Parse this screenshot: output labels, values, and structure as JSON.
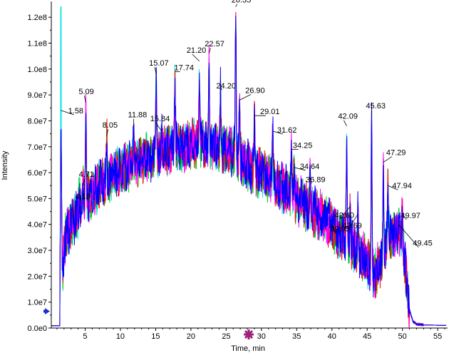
{
  "chart_data": {
    "type": "line",
    "xlabel": "Time, min",
    "ylabel": "Intensity",
    "xlim": [
      0.2,
      56.2
    ],
    "ylim": [
      0,
      125000000
    ],
    "x_ticks": [
      5,
      10,
      15,
      20,
      25,
      30,
      35,
      40,
      45,
      50,
      55
    ],
    "x_tick_labels": [
      "5",
      "10",
      "15",
      "20",
      "25",
      "30",
      "35",
      "40",
      "45",
      "50",
      "55"
    ],
    "y_ticks": [
      0,
      10000000,
      20000000,
      30000000,
      40000000,
      50000000,
      60000000,
      70000000,
      80000000,
      90000000,
      100000000,
      110000000,
      120000000
    ],
    "y_tick_labels": [
      "0.0e0",
      "1.0e7",
      "2.0e7",
      "3.0e7",
      "4.0e7",
      "5.0e7",
      "6.0e7",
      "7.0e7",
      "8.0e7",
      "9.0e7",
      "1.0e8",
      "1.1e8",
      "1.2e8"
    ],
    "grid": false,
    "legend": "none",
    "series_colors": [
      "#00e0e0",
      "#00cc00",
      "#ff0000",
      "#ff00ff",
      "#0000ff"
    ],
    "envelope": [
      [
        0.2,
        800000.0
      ],
      [
        1.2,
        800000.0
      ],
      [
        1.45,
        30000000.0
      ],
      [
        1.58,
        84000000.0
      ],
      [
        1.75,
        22000000.0
      ],
      [
        2.2,
        36000000.0
      ],
      [
        3,
        40000000.0
      ],
      [
        4,
        44000000.0
      ],
      [
        5,
        50000000.0
      ],
      [
        6,
        52000000.0
      ],
      [
        7,
        55000000.0
      ],
      [
        8,
        57000000.0
      ],
      [
        9,
        59000000.0
      ],
      [
        10,
        61000000.0
      ],
      [
        11,
        62000000.0
      ],
      [
        12,
        63000000.0
      ],
      [
        13,
        65000000.0
      ],
      [
        14,
        66000000.0
      ],
      [
        15,
        67000000.0
      ],
      [
        16,
        68000000.0
      ],
      [
        17,
        69000000.0
      ],
      [
        18,
        70000000.0
      ],
      [
        19,
        70000000.0
      ],
      [
        20,
        71000000.0
      ],
      [
        21,
        71000000.0
      ],
      [
        22,
        71000000.0
      ],
      [
        23,
        70000000.0
      ],
      [
        24,
        70000000.0
      ],
      [
        25,
        69000000.0
      ],
      [
        26,
        68000000.0
      ],
      [
        27,
        66000000.0
      ],
      [
        28,
        63000000.0
      ],
      [
        29,
        61000000.0
      ],
      [
        30,
        60000000.0
      ],
      [
        31,
        58000000.0
      ],
      [
        32,
        56000000.0
      ],
      [
        33,
        54000000.0
      ],
      [
        34,
        52000000.0
      ],
      [
        35,
        50000000.0
      ],
      [
        36,
        48000000.0
      ],
      [
        37,
        46000000.0
      ],
      [
        38,
        44000000.0
      ],
      [
        39,
        42000000.0
      ],
      [
        40,
        39000000.0
      ],
      [
        41,
        36000000.0
      ],
      [
        42,
        34000000.0
      ],
      [
        43,
        32000000.0
      ],
      [
        44,
        29000000.0
      ],
      [
        45,
        25000000.0
      ],
      [
        46,
        20000000.0
      ],
      [
        47,
        26000000.0
      ],
      [
        48,
        36000000.0
      ],
      [
        49,
        37000000.0
      ],
      [
        50,
        35000000.0
      ],
      [
        50.5,
        20000000.0
      ],
      [
        51,
        7000000.0
      ],
      [
        51.5,
        2500000.0
      ],
      [
        52,
        1500000.0
      ],
      [
        53,
        1200000.0
      ],
      [
        56.2,
        1000000.0
      ]
    ],
    "peaks": [
      {
        "label": "1.58",
        "x": 1.58,
        "y": 84000000
      },
      {
        "label": "4.18",
        "x": 4.18,
        "y": 52000000
      },
      {
        "label": "4.71",
        "x": 4.71,
        "y": 55000000
      },
      {
        "label": "5.09",
        "x": 5.09,
        "y": 87000000
      },
      {
        "label": "8.05",
        "x": 8.05,
        "y": 74000000
      },
      {
        "label": "11.88",
        "x": 11.88,
        "y": 78000000
      },
      {
        "label": "15.07",
        "x": 15.07,
        "y": 98000000
      },
      {
        "label": "15.84",
        "x": 15.84,
        "y": 76000000
      },
      {
        "label": "17.74",
        "x": 17.74,
        "y": 99000000
      },
      {
        "label": "21.20",
        "x": 21.2,
        "y": 103000000
      },
      {
        "label": "22.57",
        "x": 22.57,
        "y": 106000000
      },
      {
        "label": "24.20",
        "x": 24.2,
        "y": 93000000
      },
      {
        "label": "26.35",
        "x": 26.35,
        "y": 124000000
      },
      {
        "label": "26.90",
        "x": 26.9,
        "y": 88000000
      },
      {
        "label": "29.01",
        "x": 29.01,
        "y": 82000000
      },
      {
        "label": "31.62",
        "x": 31.62,
        "y": 76000000
      },
      {
        "label": "34.25",
        "x": 34.25,
        "y": 69000000
      },
      {
        "label": "34.64",
        "x": 34.64,
        "y": 62000000
      },
      {
        "label": "36.89",
        "x": 36.89,
        "y": 58000000
      },
      {
        "label": "39.95",
        "x": 39.95,
        "y": 40000000
      },
      {
        "label": "42.09",
        "x": 42.09,
        "y": 78000000
      },
      {
        "label": "42.60",
        "x": 42.6,
        "y": 47000000
      },
      {
        "label": "43.69",
        "x": 43.69,
        "y": 44000000
      },
      {
        "label": "45.63",
        "x": 45.63,
        "y": 82000000
      },
      {
        "label": "47.29",
        "x": 47.29,
        "y": 64000000
      },
      {
        "label": "47.94",
        "x": 47.94,
        "y": 55000000
      },
      {
        "label": "49.97",
        "x": 49.97,
        "y": 44000000
      },
      {
        "label": "49.45",
        "x": 49.45,
        "y": 40000000
      }
    ]
  }
}
